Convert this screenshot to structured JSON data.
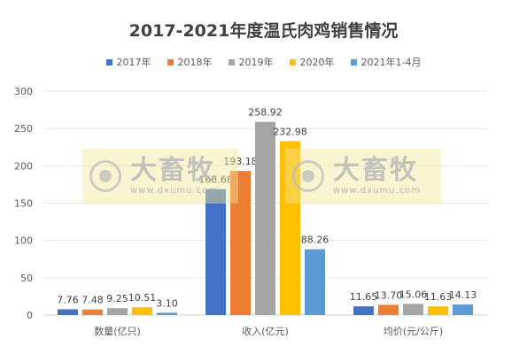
{
  "chart_data": {
    "type": "bar",
    "title": "2017-2021年度温氏肉鸡销售情况",
    "categories": [
      "数量(亿只)",
      "收入(亿元)",
      "均价(元/公斤)"
    ],
    "series": [
      {
        "name": "2017年",
        "color": "#4472C4",
        "values": [
          7.76,
          168.68,
          11.65
        ],
        "labels": [
          "7.76",
          "168.68",
          "11.65"
        ]
      },
      {
        "name": "2018年",
        "color": "#ED7D31",
        "values": [
          7.48,
          193.18,
          13.7
        ],
        "labels": [
          "7.48",
          "193.18",
          "13.70"
        ]
      },
      {
        "name": "2019年",
        "color": "#A5A5A5",
        "values": [
          9.25,
          258.92,
          15.06
        ],
        "labels": [
          "9.25",
          "258.92",
          "15.06"
        ]
      },
      {
        "name": "2020年",
        "color": "#FFC000",
        "values": [
          10.51,
          232.98,
          11.63
        ],
        "labels": [
          "10.51",
          "232.98",
          "11.63"
        ]
      },
      {
        "name": "2021年1-4月",
        "color": "#5B9BD5",
        "values": [
          3.1,
          88.26,
          14.13
        ],
        "labels": [
          "3.10",
          "88.26",
          "14.13"
        ]
      }
    ],
    "ylim": [
      0,
      300
    ],
    "yticks": [
      0,
      50,
      100,
      150,
      200,
      250,
      300
    ],
    "grid": true,
    "legend_position": "top"
  },
  "watermark": {
    "brand": "大畜牧",
    "url": "www.dxumu.com"
  }
}
